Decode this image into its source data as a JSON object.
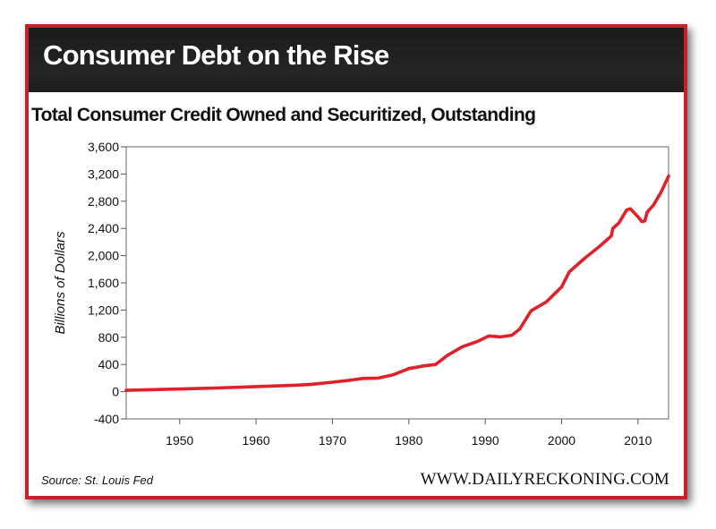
{
  "header": {
    "title": "Consumer Debt on the Rise"
  },
  "footer": {
    "source": "Source: St. Louis Fed",
    "website": "WWW.DAILYRECKONING.COM"
  },
  "colors": {
    "frame": "#c8202a",
    "banner": "#222222",
    "line": "#e0202a"
  },
  "chart_data": {
    "type": "line",
    "title": "Total Consumer Credit Owned and Securitized, Outstanding",
    "xlabel": "",
    "ylabel": "Billions of Dollars",
    "xlim": [
      1943,
      2014
    ],
    "ylim": [
      -400,
      3600
    ],
    "x_ticks": [
      1950,
      1960,
      1970,
      1980,
      1990,
      2000,
      2010
    ],
    "x_tick_labels": [
      "1950",
      "1960",
      "1970",
      "1980",
      "1990",
      "2000",
      "2010"
    ],
    "y_ticks": [
      -400,
      0,
      400,
      800,
      1200,
      1600,
      2000,
      2400,
      2800,
      3200,
      3600
    ],
    "y_tick_labels": [
      "-400",
      "0",
      "400",
      "800",
      "1,200",
      "1,600",
      "2,000",
      "2,400",
      "2,800",
      "3,200",
      "3,600"
    ],
    "grid": false,
    "legend": "none",
    "series": [
      {
        "x": [
          1943,
          1950,
          1955,
          1960,
          1965,
          1967,
          1970,
          1972,
          1974,
          1976,
          1978,
          1980,
          1982,
          1983.5,
          1985,
          1987,
          1989,
          1990.5,
          1992,
          1993.5,
          1994.5,
          1996,
          1998,
          2000,
          2001,
          2003,
          2005,
          2006.5,
          2006.7,
          2007.5,
          2008.5,
          2009,
          2010,
          2010.5,
          2010.9,
          2011.2,
          2012,
          2013,
          2014
        ],
        "y": [
          20,
          40,
          55,
          75,
          95,
          105,
          140,
          165,
          195,
          200,
          250,
          340,
          380,
          400,
          530,
          660,
          740,
          820,
          805,
          830,
          920,
          1190,
          1320,
          1540,
          1760,
          1960,
          2140,
          2290,
          2400,
          2480,
          2670,
          2690,
          2570,
          2500,
          2510,
          2640,
          2740,
          2930,
          3170
        ]
      }
    ]
  }
}
